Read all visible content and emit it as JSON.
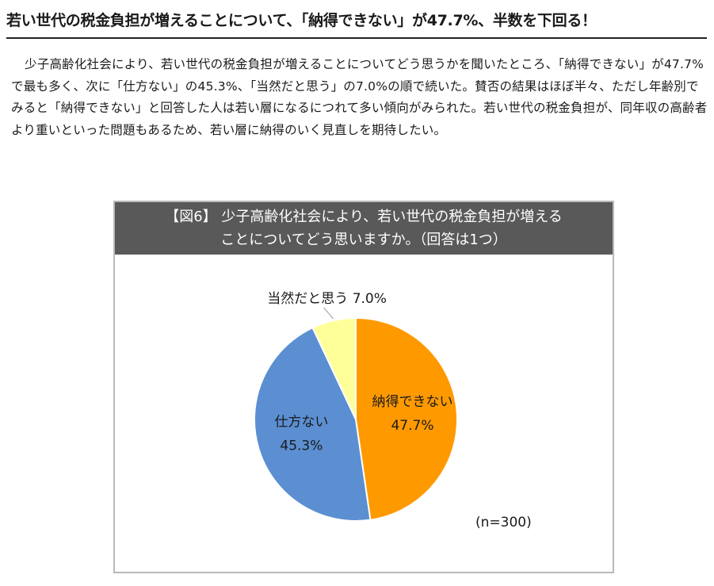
{
  "headline": "若い世代の税金負担が増えることについて、「納得できない」が47.7%、半数を下回る！",
  "body_paragraph": "少子高齢化社会により、若い世代の税金負担が増えることについてどう思うかを聞いたところ、「納得できない」が47.7%で最も多く、次に「仕方ない」の45.3%、「当然だと思う」の7.0%の順で続いた。賛否の結果はほぼ半々、ただし年齢別でみると「納得できない」と回答した人は若い層になるにつれて多い傾向がみられた。若い世代の税金負担が、同年収の高齢者より重いといった問題もあるため、若い層に納得のいく見直しを期待したい。",
  "chart_data": {
    "type": "pie",
    "title_lines": [
      "【図6】 少子高齢化社会により、若い世代の税金負担が増える",
      "ことについてどう思いますか。（回答は1つ）"
    ],
    "slices": [
      {
        "label": "納得できない",
        "value": 47.7,
        "value_label": "47.7%",
        "color": "#FF9900"
      },
      {
        "label": "仕方ない",
        "value": 45.3,
        "value_label": "45.3%",
        "color": "#5B8FD2"
      },
      {
        "label": "当然だと思う",
        "value": 7.0,
        "value_label": "7.0%",
        "color": "#FFFF99"
      }
    ],
    "start_angle_deg": 0,
    "direction": "clockwise",
    "n_label": "(n=300)",
    "header_color": "#595959",
    "border_color": "#B9B9B9"
  }
}
